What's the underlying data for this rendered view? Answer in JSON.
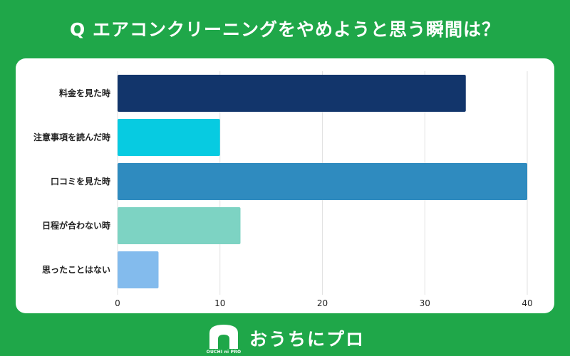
{
  "title": "Q エアコンクリーニングをやめようと思う瞬間は？",
  "chart_data": {
    "type": "bar",
    "orientation": "horizontal",
    "categories": [
      "料金を見た時",
      "注意事項を読んだ時",
      "口コミを見た時",
      "日程が合わない時",
      "思ったことはない"
    ],
    "values": [
      34,
      10,
      40,
      12,
      4
    ],
    "colors": [
      "#12356b",
      "#07cbe1",
      "#2f8bbf",
      "#7dd3c3",
      "#83bbed"
    ],
    "xlim": [
      0,
      40
    ],
    "xticks": [
      0,
      10,
      20,
      30,
      40
    ],
    "grid": true,
    "xlabel": "",
    "ylabel": ""
  },
  "footer": {
    "logo_text": "おうちにプロ",
    "logo_sub": "OUCHI ni PRO"
  }
}
